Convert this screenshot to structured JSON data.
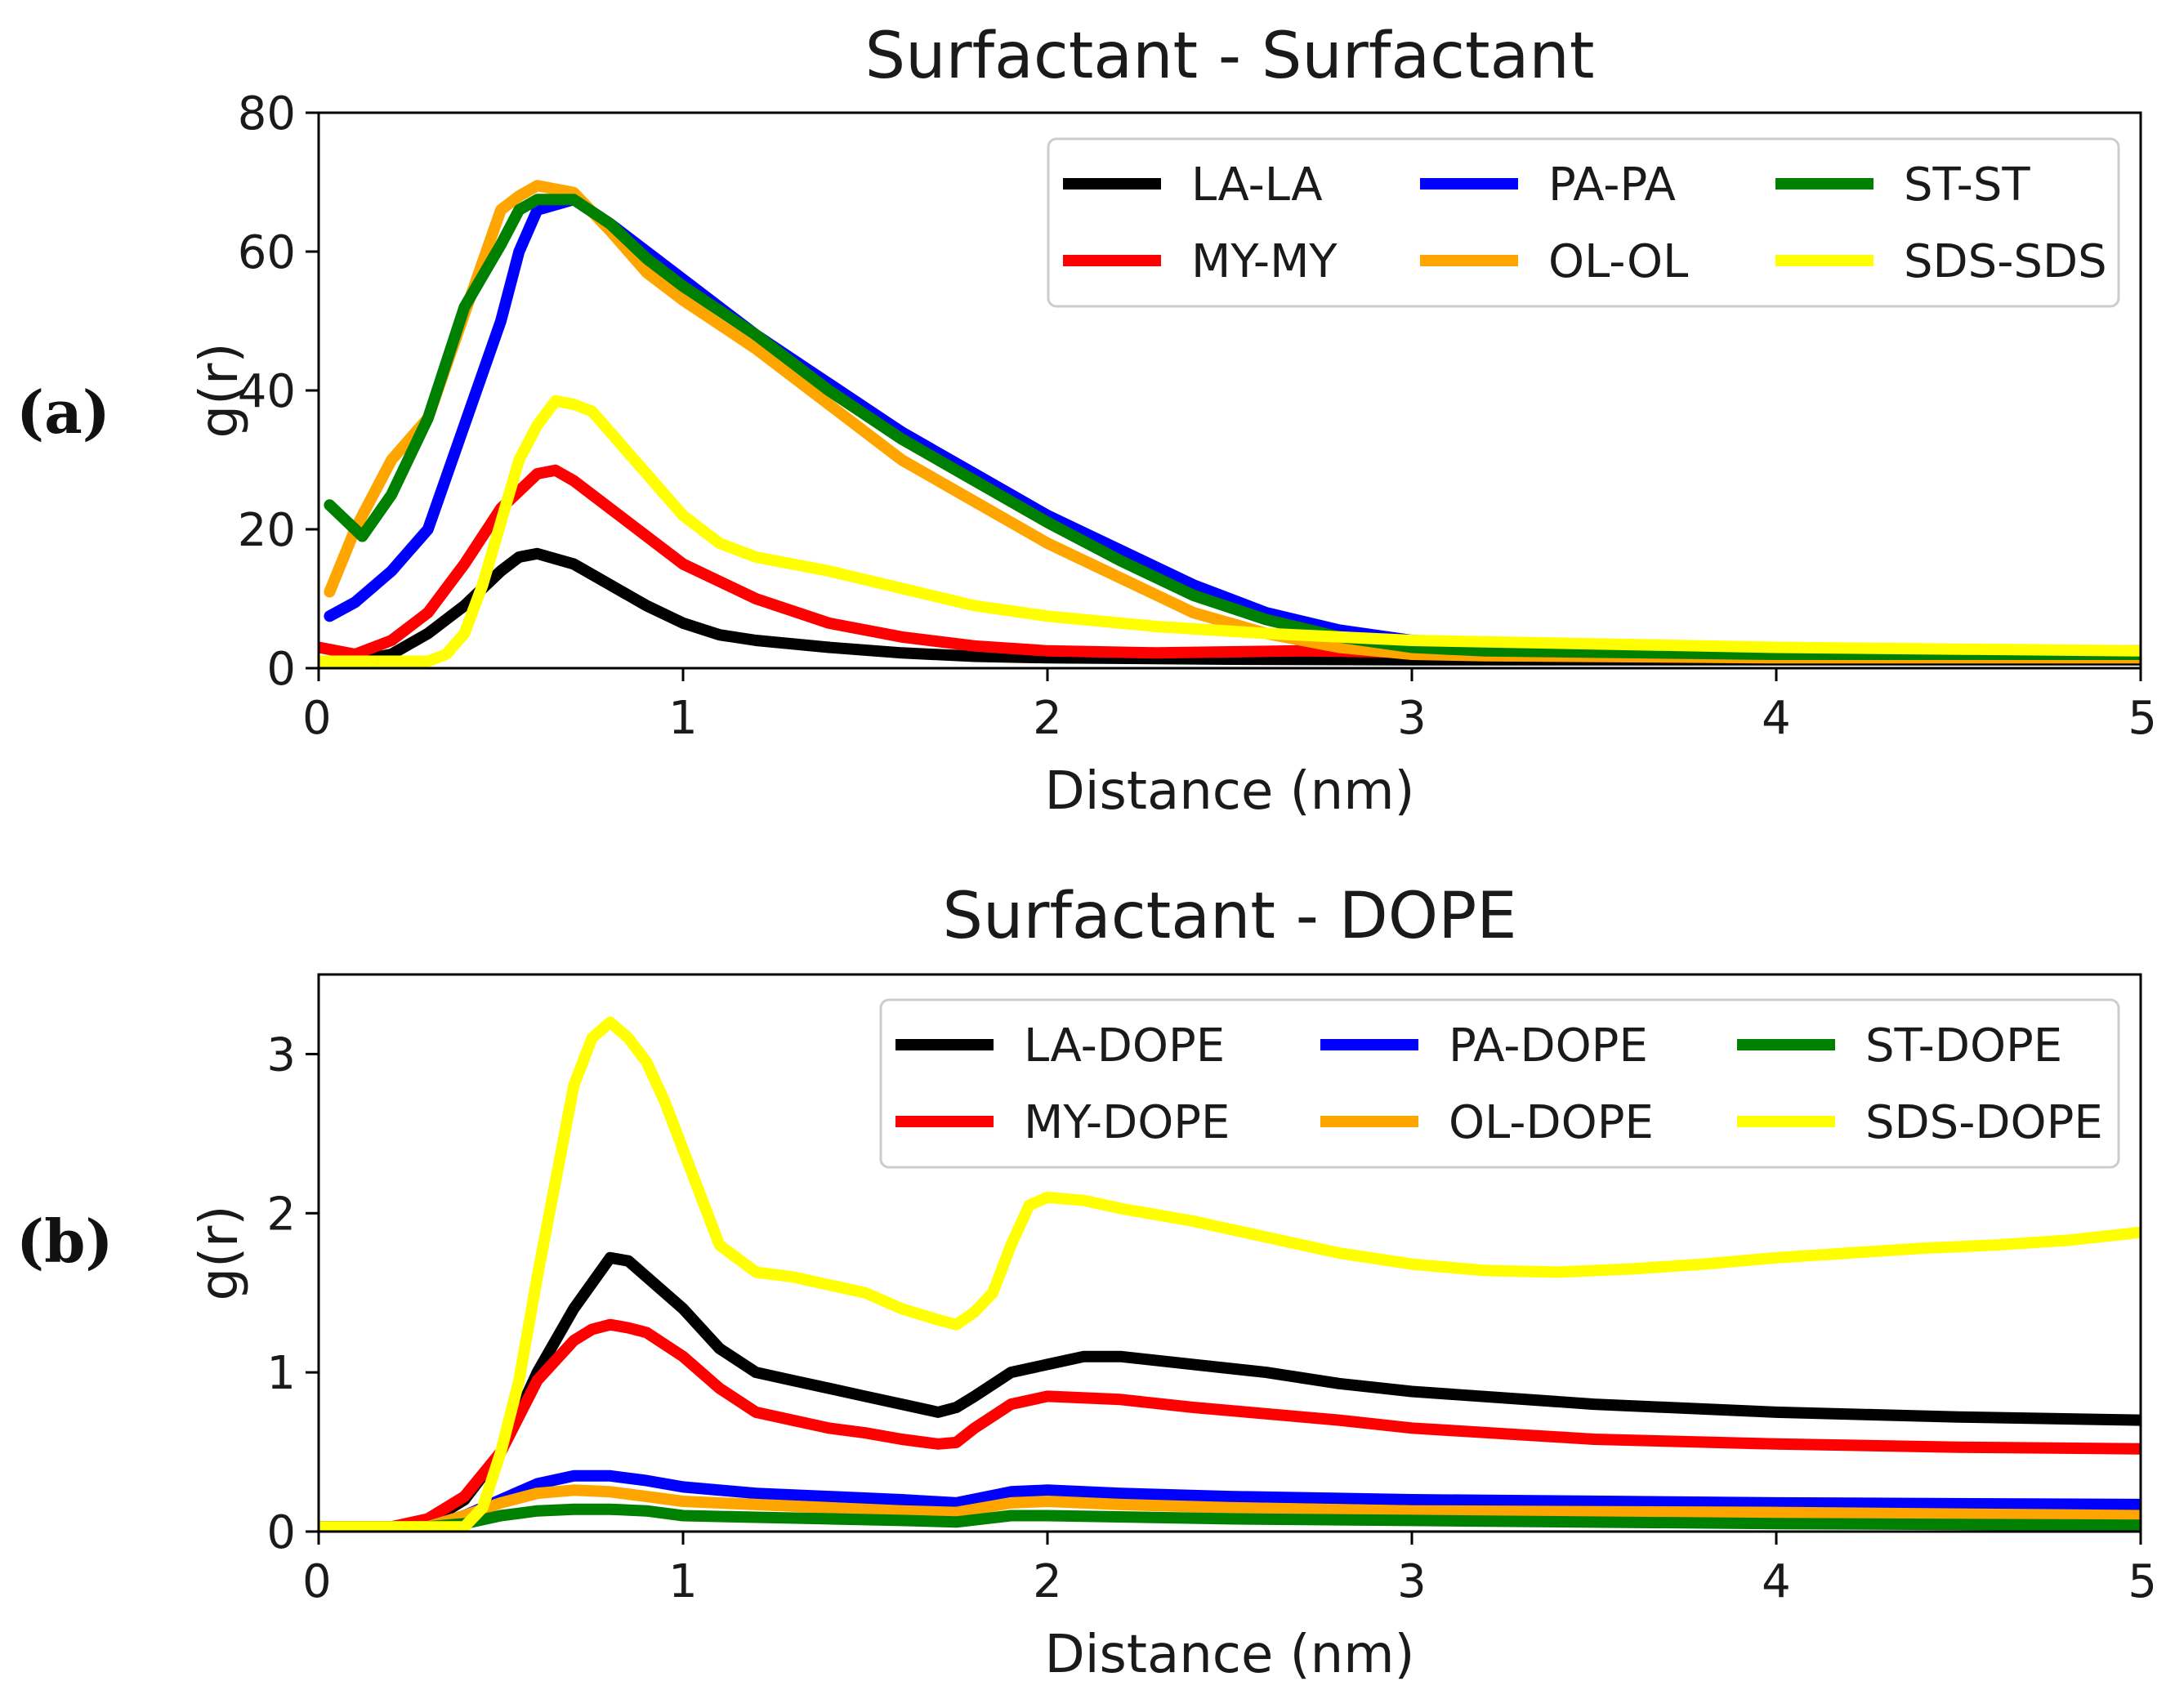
{
  "chart_data": [
    {
      "type": "line",
      "panel_label": "(a)",
      "title": "Surfactant - Surfactant",
      "xlabel": "Distance (nm)",
      "ylabel": "g(r)",
      "xlim": [
        0,
        5
      ],
      "ylim": [
        0,
        80
      ],
      "xticks": [
        0,
        1,
        2,
        3,
        4,
        5
      ],
      "yticks": [
        0,
        20,
        40,
        60,
        80
      ],
      "grid": false,
      "legend_position": "top-right",
      "series": [
        {
          "name": "LA-LA",
          "color": "#000000",
          "x": [
            0.0,
            0.1,
            0.2,
            0.3,
            0.4,
            0.5,
            0.55,
            0.6,
            0.7,
            0.8,
            0.9,
            1.0,
            1.1,
            1.2,
            1.4,
            1.6,
            1.8,
            2.0,
            2.5,
            3.0,
            4.0,
            5.0
          ],
          "y": [
            1.0,
            1.0,
            2.0,
            5.0,
            9.0,
            14.0,
            16.0,
            16.5,
            15.0,
            12.0,
            9.0,
            6.5,
            4.8,
            4.0,
            3.0,
            2.2,
            1.7,
            1.5,
            1.3,
            1.2,
            1.2,
            1.2
          ]
        },
        {
          "name": "MY-MY",
          "color": "#ff0000",
          "x": [
            0.0,
            0.1,
            0.2,
            0.3,
            0.4,
            0.5,
            0.6,
            0.65,
            0.7,
            0.8,
            0.9,
            1.0,
            1.2,
            1.4,
            1.6,
            1.8,
            2.0,
            2.3,
            2.7,
            3.0,
            4.0,
            5.0
          ],
          "y": [
            3.0,
            2.0,
            4.0,
            8.0,
            15.0,
            23.0,
            28.0,
            28.5,
            27.0,
            23.0,
            19.0,
            15.0,
            10.0,
            6.5,
            4.5,
            3.2,
            2.5,
            2.2,
            2.5,
            2.3,
            2.3,
            2.5
          ]
        },
        {
          "name": "PA-PA",
          "color": "#0000ff",
          "x": [
            0.03,
            0.1,
            0.2,
            0.3,
            0.4,
            0.5,
            0.55,
            0.6,
            0.7,
            0.8,
            0.9,
            1.0,
            1.2,
            1.4,
            1.6,
            1.8,
            2.0,
            2.2,
            2.4,
            2.6,
            2.8,
            3.0,
            3.2,
            4.0,
            5.0
          ],
          "y": [
            7.5,
            9.5,
            14.0,
            20.0,
            35.0,
            50.0,
            60.0,
            66.0,
            67.5,
            64.0,
            60.0,
            56.0,
            48.0,
            41.0,
            34.0,
            28.0,
            22.0,
            17.0,
            12.0,
            8.0,
            5.5,
            4.0,
            3.2,
            2.5,
            2.0
          ]
        },
        {
          "name": "OL-OL",
          "color": "#ffa500",
          "x": [
            0.03,
            0.1,
            0.2,
            0.3,
            0.4,
            0.5,
            0.55,
            0.6,
            0.7,
            0.8,
            0.9,
            1.0,
            1.2,
            1.4,
            1.6,
            1.8,
            2.0,
            2.2,
            2.4,
            2.6,
            2.8,
            3.0,
            3.2,
            4.0,
            5.0
          ],
          "y": [
            11.0,
            20.0,
            30.0,
            36.0,
            51.0,
            66.0,
            68.0,
            69.5,
            68.5,
            63.0,
            57.0,
            53.0,
            46.0,
            38.0,
            30.0,
            24.0,
            18.0,
            13.0,
            8.0,
            5.0,
            3.0,
            2.0,
            1.8,
            1.5,
            1.5
          ]
        },
        {
          "name": "ST-ST",
          "color": "#008000",
          "x": [
            0.03,
            0.12,
            0.2,
            0.3,
            0.4,
            0.5,
            0.55,
            0.6,
            0.7,
            0.8,
            0.9,
            1.0,
            1.2,
            1.4,
            1.6,
            1.8,
            2.0,
            2.2,
            2.4,
            2.6,
            2.8,
            3.0,
            3.2,
            4.0,
            5.0
          ],
          "y": [
            23.5,
            19.0,
            25.0,
            36.0,
            52.0,
            61.0,
            66.0,
            67.5,
            67.5,
            64.0,
            59.0,
            55.0,
            48.0,
            40.0,
            33.0,
            27.0,
            21.0,
            15.5,
            10.5,
            7.0,
            4.5,
            3.0,
            2.5,
            2.0,
            2.0
          ]
        },
        {
          "name": "SDS-SDS",
          "color": "#ffff00",
          "x": [
            0.0,
            0.15,
            0.3,
            0.35,
            0.4,
            0.45,
            0.5,
            0.55,
            0.6,
            0.65,
            0.7,
            0.75,
            0.8,
            0.9,
            1.0,
            1.1,
            1.2,
            1.3,
            1.4,
            1.6,
            1.8,
            2.0,
            2.3,
            2.6,
            3.0,
            4.0,
            5.0
          ],
          "y": [
            1.0,
            1.0,
            1.0,
            2.0,
            5.0,
            12.0,
            21.0,
            30.0,
            35.0,
            38.5,
            38.0,
            37.0,
            34.0,
            28.0,
            22.0,
            18.0,
            16.0,
            15.0,
            14.0,
            11.5,
            9.0,
            7.5,
            6.0,
            5.0,
            4.0,
            3.0,
            2.5
          ]
        }
      ]
    },
    {
      "type": "line",
      "panel_label": "(b)",
      "title": "Surfactant - DOPE",
      "xlabel": "Distance (nm)",
      "ylabel": "g(r)",
      "xlim": [
        0,
        5
      ],
      "ylim": [
        0,
        3.5
      ],
      "xticks": [
        0,
        1,
        2,
        3,
        4,
        5
      ],
      "yticks": [
        0,
        1,
        2,
        3
      ],
      "grid": false,
      "legend_position": "top-right",
      "series": [
        {
          "name": "LA-DOPE",
          "color": "#000000",
          "x": [
            0.0,
            0.2,
            0.3,
            0.4,
            0.5,
            0.6,
            0.7,
            0.8,
            0.85,
            0.9,
            1.0,
            1.1,
            1.2,
            1.3,
            1.4,
            1.5,
            1.6,
            1.7,
            1.75,
            1.8,
            1.9,
            2.0,
            2.1,
            2.2,
            2.4,
            2.6,
            2.8,
            3.0,
            3.5,
            4.0,
            4.5,
            5.0
          ],
          "y": [
            0.03,
            0.03,
            0.06,
            0.2,
            0.5,
            1.0,
            1.4,
            1.72,
            1.7,
            1.6,
            1.4,
            1.15,
            1.0,
            0.95,
            0.9,
            0.85,
            0.8,
            0.75,
            0.78,
            0.85,
            1.0,
            1.05,
            1.1,
            1.1,
            1.05,
            1.0,
            0.93,
            0.88,
            0.8,
            0.75,
            0.72,
            0.7
          ]
        },
        {
          "name": "MY-DOPE",
          "color": "#ff0000",
          "x": [
            0.0,
            0.2,
            0.3,
            0.4,
            0.5,
            0.6,
            0.7,
            0.75,
            0.8,
            0.85,
            0.9,
            1.0,
            1.1,
            1.2,
            1.3,
            1.4,
            1.5,
            1.6,
            1.7,
            1.75,
            1.8,
            1.9,
            2.0,
            2.2,
            2.4,
            2.6,
            2.8,
            3.0,
            3.5,
            4.0,
            4.5,
            5.0
          ],
          "y": [
            0.03,
            0.03,
            0.08,
            0.22,
            0.5,
            0.95,
            1.2,
            1.27,
            1.3,
            1.28,
            1.25,
            1.1,
            0.9,
            0.75,
            0.7,
            0.65,
            0.62,
            0.58,
            0.55,
            0.56,
            0.65,
            0.8,
            0.85,
            0.83,
            0.78,
            0.74,
            0.7,
            0.65,
            0.58,
            0.55,
            0.53,
            0.52
          ]
        },
        {
          "name": "PA-DOPE",
          "color": "#0000ff",
          "x": [
            0.0,
            0.3,
            0.4,
            0.5,
            0.6,
            0.7,
            0.8,
            0.9,
            1.0,
            1.2,
            1.4,
            1.6,
            1.75,
            1.9,
            2.0,
            2.2,
            2.5,
            3.0,
            4.0,
            5.0
          ],
          "y": [
            0.03,
            0.03,
            0.1,
            0.2,
            0.3,
            0.35,
            0.35,
            0.32,
            0.28,
            0.24,
            0.22,
            0.2,
            0.18,
            0.25,
            0.26,
            0.24,
            0.22,
            0.2,
            0.18,
            0.17
          ]
        },
        {
          "name": "OL-DOPE",
          "color": "#ffa500",
          "x": [
            0.0,
            0.3,
            0.4,
            0.5,
            0.6,
            0.7,
            0.8,
            0.9,
            1.0,
            1.2,
            1.4,
            1.6,
            1.75,
            1.9,
            2.0,
            2.2,
            2.5,
            3.0,
            4.0,
            5.0
          ],
          "y": [
            0.03,
            0.03,
            0.1,
            0.18,
            0.24,
            0.26,
            0.25,
            0.22,
            0.19,
            0.17,
            0.15,
            0.13,
            0.12,
            0.18,
            0.19,
            0.17,
            0.15,
            0.13,
            0.12,
            0.1
          ]
        },
        {
          "name": "ST-DOPE",
          "color": "#008000",
          "x": [
            0.0,
            0.3,
            0.4,
            0.5,
            0.6,
            0.7,
            0.8,
            0.9,
            1.0,
            1.2,
            1.4,
            1.6,
            1.75,
            1.9,
            2.0,
            2.5,
            3.0,
            4.0,
            5.0
          ],
          "y": [
            0.03,
            0.03,
            0.05,
            0.1,
            0.13,
            0.14,
            0.14,
            0.13,
            0.1,
            0.09,
            0.08,
            0.07,
            0.06,
            0.1,
            0.1,
            0.08,
            0.07,
            0.05,
            0.04
          ]
        },
        {
          "name": "SDS-DOPE",
          "color": "#ffff00",
          "x": [
            0.0,
            0.4,
            0.45,
            0.5,
            0.55,
            0.6,
            0.65,
            0.7,
            0.75,
            0.8,
            0.85,
            0.9,
            0.95,
            1.0,
            1.1,
            1.2,
            1.3,
            1.4,
            1.5,
            1.6,
            1.7,
            1.75,
            1.8,
            1.85,
            1.9,
            1.95,
            2.0,
            2.1,
            2.2,
            2.4,
            2.6,
            2.8,
            3.0,
            3.2,
            3.4,
            3.6,
            3.8,
            4.0,
            4.2,
            4.4,
            4.6,
            4.8,
            5.0
          ],
          "y": [
            0.03,
            0.03,
            0.15,
            0.5,
            0.95,
            1.6,
            2.2,
            2.8,
            3.1,
            3.2,
            3.1,
            2.95,
            2.7,
            2.4,
            1.8,
            1.63,
            1.6,
            1.55,
            1.5,
            1.4,
            1.33,
            1.3,
            1.38,
            1.5,
            1.8,
            2.05,
            2.1,
            2.08,
            2.03,
            1.95,
            1.85,
            1.75,
            1.68,
            1.64,
            1.63,
            1.65,
            1.68,
            1.72,
            1.75,
            1.78,
            1.8,
            1.83,
            1.88
          ]
        }
      ]
    }
  ]
}
